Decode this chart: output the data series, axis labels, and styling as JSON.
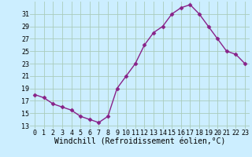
{
  "x": [
    0,
    1,
    2,
    3,
    4,
    5,
    6,
    7,
    8,
    9,
    10,
    11,
    12,
    13,
    14,
    15,
    16,
    17,
    18,
    19,
    20,
    21,
    22,
    23
  ],
  "y": [
    18,
    17.5,
    16.5,
    16,
    15.5,
    14.5,
    14,
    13.5,
    14.5,
    19,
    21,
    23,
    26,
    28,
    29,
    31,
    32,
    32.5,
    31,
    29,
    27,
    25,
    24.5,
    23
  ],
  "line_color": "#882288",
  "marker": "D",
  "marker_size": 2.5,
  "bg_color": "#cceeff",
  "grid_color": "#aaccbb",
  "xlabel": "Windchill (Refroidissement éolien,°C)",
  "xlabel_fontsize": 7,
  "ylabel_ticks": [
    13,
    15,
    17,
    19,
    21,
    23,
    25,
    27,
    29,
    31
  ],
  "xtick_labels": [
    "0",
    "1",
    "2",
    "3",
    "4",
    "5",
    "6",
    "7",
    "8",
    "9",
    "10",
    "11",
    "12",
    "13",
    "14",
    "15",
    "16",
    "17",
    "18",
    "19",
    "20",
    "21",
    "22",
    "23"
  ],
  "ylim": [
    12.5,
    33.0
  ],
  "xlim": [
    -0.5,
    23.5
  ],
  "tick_fontsize": 6,
  "line_width": 1.0
}
